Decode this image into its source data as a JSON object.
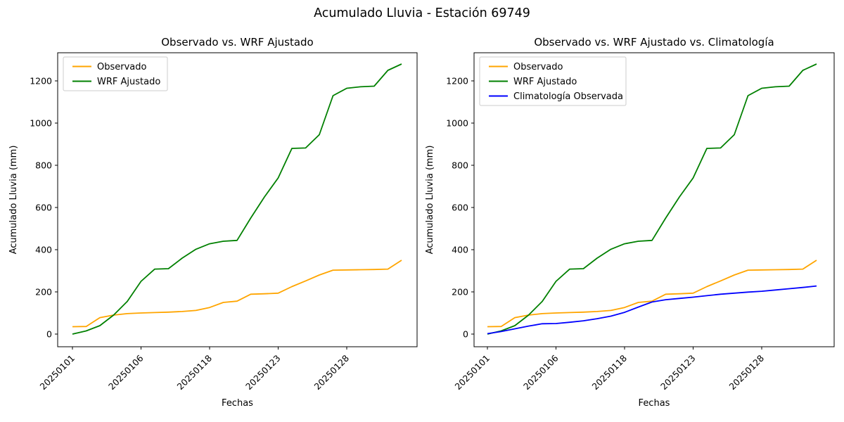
{
  "figure_title": "Acumulado Lluvia - Estación 69749",
  "colors": {
    "observado": "#FFA500",
    "wrf_ajustado": "#008000",
    "climatologia": "#0000FF",
    "axis": "#000000",
    "legend_border": "#cccccc",
    "background": "#ffffff"
  },
  "chart_data": [
    {
      "type": "line",
      "title": "Observado vs. WRF Ajustado",
      "xlabel": "Fechas",
      "ylabel": "Acumulado Lluvia (mm)",
      "x_tick_labels": [
        "20250101",
        "20250106",
        "20250118",
        "20250123",
        "20250128"
      ],
      "x_tick_positions": [
        0,
        5,
        10,
        15,
        20
      ],
      "y_ticks": [
        0,
        200,
        400,
        600,
        800,
        1000,
        1200
      ],
      "ylim": [
        -64,
        1334
      ],
      "n_points": 25,
      "grid": false,
      "legend_position": "upper left",
      "series": [
        {
          "name": "Observado",
          "color": "#FFA500",
          "values": [
            35,
            36,
            78,
            90,
            97,
            100,
            102,
            104,
            107,
            112,
            126,
            150,
            156,
            189,
            191,
            194,
            225,
            252,
            280,
            303,
            304,
            305,
            306,
            308,
            350
          ]
        },
        {
          "name": "WRF Ajustado",
          "color": "#008000",
          "values": [
            0,
            15,
            40,
            90,
            155,
            250,
            308,
            310,
            360,
            402,
            428,
            440,
            444,
            550,
            650,
            740,
            880,
            882,
            945,
            1130,
            1165,
            1172,
            1175,
            1250,
            1280
          ]
        }
      ]
    },
    {
      "type": "line",
      "title": "Observado vs. WRF Ajustado vs. Climatología",
      "xlabel": "Fechas",
      "ylabel": "Acumulado Lluvia (mm)",
      "x_tick_labels": [
        "20250101",
        "20250106",
        "20250118",
        "20250123",
        "20250128"
      ],
      "x_tick_positions": [
        0,
        5,
        10,
        15,
        20
      ],
      "y_ticks": [
        0,
        200,
        400,
        600,
        800,
        1000,
        1200
      ],
      "ylim": [
        -64,
        1334
      ],
      "n_points": 25,
      "grid": false,
      "legend_position": "upper left",
      "series": [
        {
          "name": "Observado",
          "color": "#FFA500",
          "values": [
            35,
            36,
            78,
            90,
            97,
            100,
            102,
            104,
            107,
            112,
            126,
            150,
            156,
            189,
            191,
            194,
            225,
            252,
            280,
            303,
            304,
            305,
            306,
            308,
            350
          ]
        },
        {
          "name": "WRF Ajustado",
          "color": "#008000",
          "values": [
            0,
            15,
            40,
            90,
            155,
            250,
            308,
            310,
            360,
            402,
            428,
            440,
            444,
            550,
            650,
            740,
            880,
            882,
            945,
            1130,
            1165,
            1172,
            1175,
            1250,
            1280
          ]
        },
        {
          "name": "Climatología Observada",
          "color": "#0000FF",
          "values": [
            2,
            12,
            25,
            38,
            49,
            50,
            56,
            63,
            73,
            85,
            103,
            128,
            152,
            163,
            169,
            175,
            182,
            189,
            194,
            199,
            203,
            209,
            215,
            221,
            228
          ]
        }
      ]
    }
  ]
}
